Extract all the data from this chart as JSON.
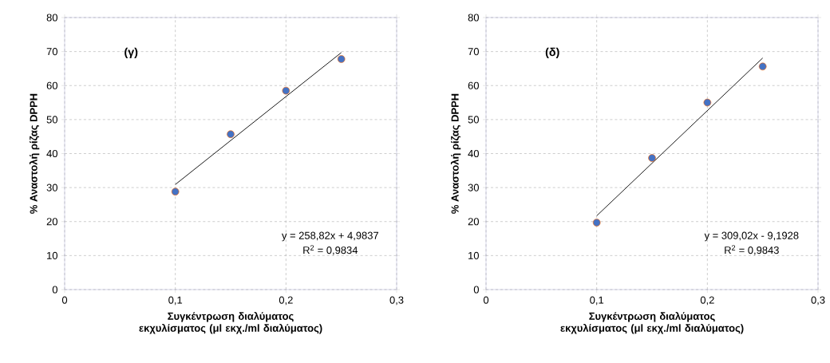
{
  "chart_data": [
    {
      "type": "scatter",
      "xlabel": "Συγκέντρωση διαλύματος εκχυλίσματος (μl εκχ./ml διαλύματος)",
      "ylabel": "% Αναστολή ρίζας DPPH",
      "annotations": [
        "(γ)",
        "y = 258,82x + 4,9837",
        "R$^{2}$ = 0,9834"
      ],
      "xlim": [
        0,
        0.3
      ],
      "ylim": [
        0,
        80
      ],
      "xticks": [
        0,
        {
          "value": 0.1,
          "label": "0,1"
        },
        {
          "value": 0.2,
          "label": "0,2"
        },
        {
          "value": 0.3,
          "label": "0,3"
        }
      ],
      "yticks": [
        0,
        10,
        20,
        30,
        40,
        50,
        60,
        70,
        80
      ],
      "grid": true,
      "series": [
        {
          "marker": "circle",
          "color": "#4472c4",
          "x": [
            0.1,
            0.15,
            0.2,
            0.25
          ],
          "values": [
            28.8,
            45.7,
            58.5,
            67.8
          ]
        },
        {
          "type": "line",
          "marker": "none",
          "color": "#000000",
          "x": [
            0.1,
            0.25
          ],
          "values": [
            30.9,
            69.7
          ]
        }
      ]
    },
    {
      "type": "scatter",
      "xlabel": "Συγκέντρωση διαλύματος εκχυλίσματος (μl εκχ./ml διαλύματος)",
      "ylabel": "% Αναστολή ρίζας DPPH",
      "annotations": [
        "(δ)",
        "y = 309,02x - 9,1928",
        "R$^{2}$ = 0,9843"
      ],
      "xlim": [
        0,
        0.3
      ],
      "ylim": [
        0,
        80
      ],
      "xticks": [
        0,
        {
          "value": 0.1,
          "label": "0,1"
        },
        {
          "value": 0.2,
          "label": "0,2"
        },
        {
          "value": 0.3,
          "label": "0,3"
        }
      ],
      "yticks": [
        0,
        10,
        20,
        30,
        40,
        50,
        60,
        70,
        80
      ],
      "grid": true,
      "series": [
        {
          "marker": "circle",
          "color": "#4472c4",
          "x": [
            0.1,
            0.15,
            0.2,
            0.25
          ],
          "values": [
            19.7,
            38.7,
            55.0,
            65.6
          ]
        },
        {
          "type": "line",
          "marker": "none",
          "color": "#000000",
          "x": [
            0.1,
            0.25
          ],
          "values": [
            21.7,
            68.1
          ]
        }
      ]
    }
  ]
}
